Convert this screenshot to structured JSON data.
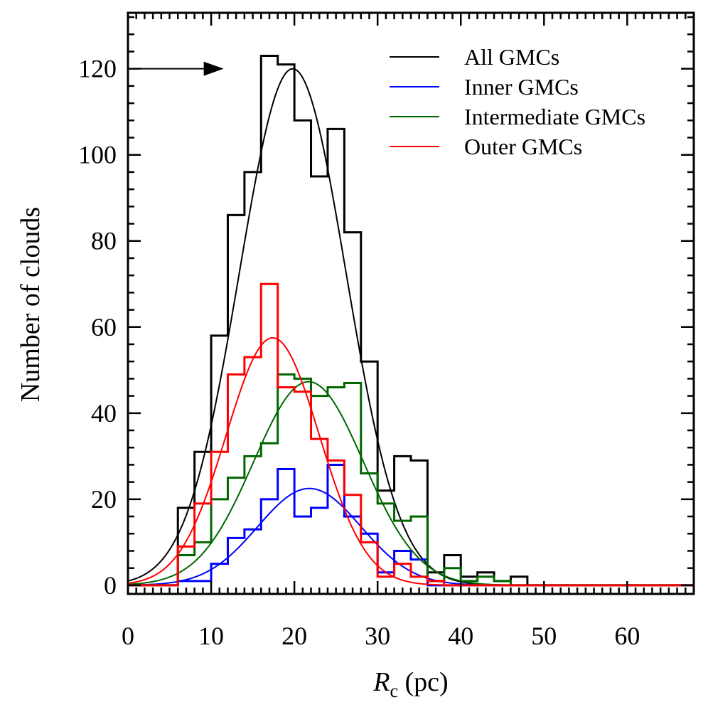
{
  "chart_data": {
    "type": "histogram",
    "xlabel_main": "R",
    "xlabel_sub": "c",
    "xlabel_unit": " (pc)",
    "ylabel": "Number of clouds",
    "xlim": [
      0,
      68
    ],
    "ylim": [
      -2,
      133
    ],
    "xticks": [
      0,
      10,
      20,
      30,
      40,
      50,
      60
    ],
    "xtick_labels": [
      "0",
      "10",
      "20",
      "30",
      "40",
      "50",
      "60"
    ],
    "yticks": [
      0,
      20,
      40,
      60,
      80,
      100,
      120
    ],
    "ytick_labels": [
      "0",
      "20",
      "40",
      "60",
      "80",
      "100",
      "120"
    ],
    "x_minor_step": 1,
    "y_minor_step": 4,
    "arrow": {
      "x_from": 0,
      "x_to": 11.5,
      "y": 120
    },
    "legend_position": "top-right",
    "bin_edges": [
      0,
      2,
      4,
      6,
      8,
      10,
      12,
      14,
      16,
      18,
      20,
      22,
      24,
      26,
      28,
      30,
      32,
      34,
      36,
      38,
      40,
      42,
      44,
      46,
      48,
      50,
      52,
      54,
      56,
      58,
      60,
      62,
      64,
      66,
      68
    ],
    "series": [
      {
        "name": "All GMCs",
        "color": "#000000",
        "counts": [
          0,
          0,
          0,
          18,
          31,
          58,
          86,
          96,
          123,
          121,
          108,
          95,
          106,
          82,
          52,
          22,
          30,
          29,
          3,
          7,
          2,
          3,
          1,
          2,
          0,
          0,
          0,
          0,
          0,
          0,
          0,
          0,
          0,
          0
        ],
        "gauss": {
          "amp": 120,
          "mu": 19.8,
          "sigma": 6.4
        }
      },
      {
        "name": "Inner GMCs",
        "color": "#0000ff",
        "counts": [
          0,
          0,
          0,
          1,
          1,
          5,
          11,
          13,
          20,
          27,
          16,
          18,
          28,
          16,
          12,
          3,
          8,
          6,
          0,
          0,
          0,
          0,
          0,
          0,
          0,
          0,
          0,
          0,
          0,
          0,
          0,
          0,
          0,
          0
        ],
        "gauss": {
          "amp": 22.5,
          "mu": 21.8,
          "sigma": 6.2
        }
      },
      {
        "name": "Intermediate GMCs",
        "color": "#006600",
        "counts": [
          0,
          0,
          0,
          7,
          10,
          20,
          25,
          30,
          33,
          49,
          48,
          44,
          46,
          47,
          26,
          19,
          15,
          16,
          1,
          4,
          1,
          2,
          1,
          0,
          0,
          0,
          0,
          0,
          0,
          0,
          0,
          0,
          0,
          0
        ],
        "gauss": {
          "amp": 47.3,
          "mu": 21.7,
          "sigma": 6.6
        }
      },
      {
        "name": "Outer GMCs",
        "color": "#ff0000",
        "counts": [
          0,
          0,
          0,
          9,
          19,
          31,
          49,
          53,
          70,
          46,
          45,
          34,
          29,
          21,
          10,
          2,
          5,
          2,
          1,
          0,
          0,
          0,
          0,
          0,
          0,
          0,
          0,
          0,
          0,
          0,
          0,
          0,
          0,
          0
        ],
        "gauss": {
          "amp": 57.5,
          "mu": 17.4,
          "sigma": 5.6
        }
      }
    ]
  }
}
